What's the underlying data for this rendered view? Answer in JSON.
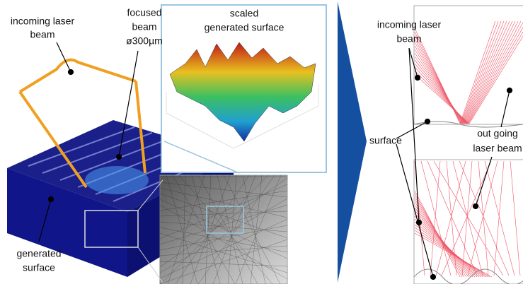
{
  "labels": {
    "incoming_beam_left": {
      "lines": [
        "incoming laser",
        "beam"
      ]
    },
    "focused_beam": {
      "lines": [
        "focused",
        "beam",
        "ø300µm"
      ]
    },
    "scaled_surface": {
      "lines": [
        "scaled",
        "generated surface"
      ]
    },
    "generated_surface": {
      "lines": [
        "generated",
        "surface"
      ]
    },
    "incoming_beam_right": {
      "lines": [
        "incoming laser",
        "beam"
      ]
    },
    "surface": {
      "lines": [
        "surface"
      ]
    },
    "outgoing_beam": {
      "lines": [
        "out going",
        "laser beam"
      ]
    }
  }
}
